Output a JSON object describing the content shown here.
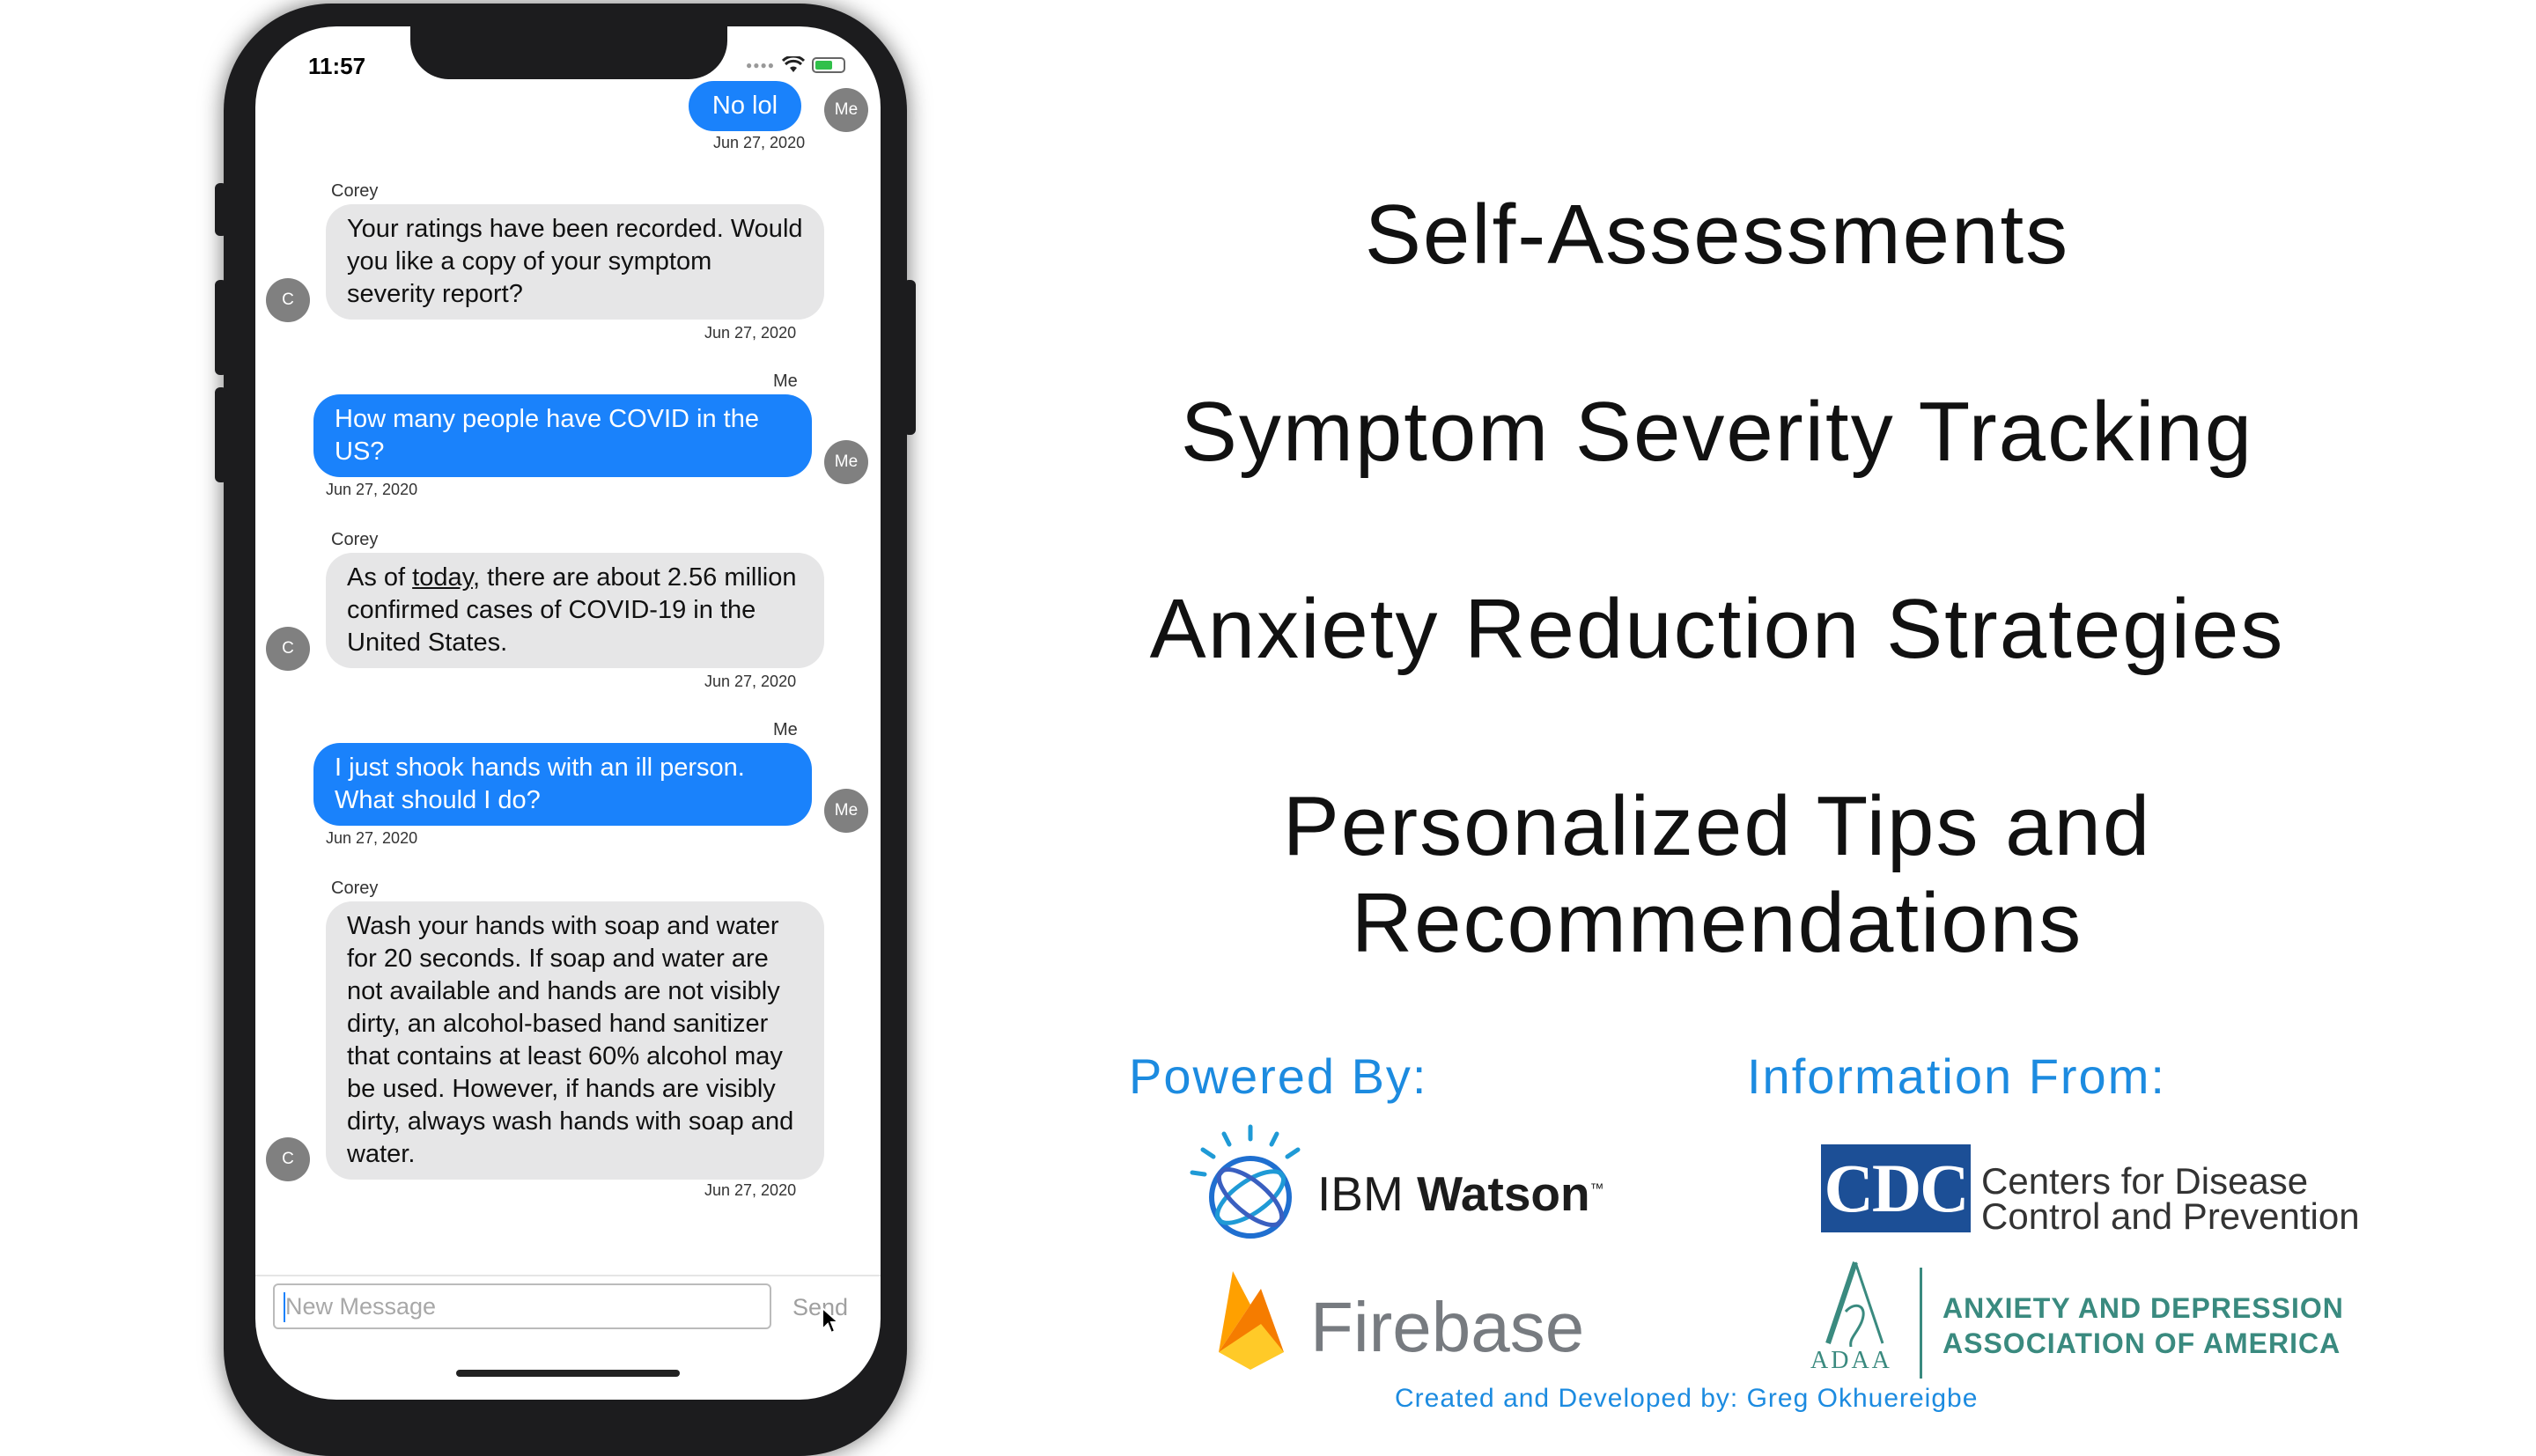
{
  "phone": {
    "status_time": "11:57",
    "messages": [
      {
        "from": "me",
        "text": "No lol",
        "date": "Jun 27, 2020",
        "avatar": "Me"
      },
      {
        "from": "them",
        "sender": "Corey",
        "text": "Your ratings have been recorded. Would you like a copy of your symptom severity report?",
        "date": "Jun 27, 2020",
        "avatar": "C"
      },
      {
        "from": "me",
        "sender": "Me",
        "text": "How many people have COVID in the US?",
        "date": "Jun 27, 2020",
        "avatar": "Me"
      },
      {
        "from": "them",
        "sender": "Corey",
        "text_before": "As of ",
        "link": "today",
        "text_after": ", there are about 2.56 million confirmed cases of COVID-19 in the United States.",
        "date": "Jun 27, 2020",
        "avatar": "C"
      },
      {
        "from": "me",
        "sender": "Me",
        "text": "I just shook hands with an ill person. What should I do?",
        "date": "Jun 27, 2020",
        "avatar": "Me"
      },
      {
        "from": "them",
        "sender": "Corey",
        "text": "Wash your hands with soap and water for 20 seconds. If soap and water are not available and hands are not visibly dirty, an alcohol-based hand sanitizer that contains at least 60% alcohol may be used. However, if hands are visibly dirty, always wash hands with soap and water.",
        "date": "Jun 27, 2020",
        "avatar": "C"
      }
    ],
    "composer": {
      "placeholder": "New Message",
      "send_label": "Send"
    }
  },
  "features": [
    "Self-Assessments",
    "Symptom Severity Tracking",
    "Anxiety Reduction Strategies",
    "Personalized Tips and Recommendations"
  ],
  "powered_by": {
    "heading": "Powered By:",
    "ibm": {
      "light": "IBM ",
      "bold": "Watson",
      "tm": "™"
    },
    "firebase": "Firebase"
  },
  "information_from": {
    "heading": "Information From:",
    "cdc": {
      "mark": "CDC",
      "line1": "Centers for Disease",
      "line2": "Control and Prevention"
    },
    "adaa": {
      "letters": "ADAA",
      "line1": "ANXIETY AND DEPRESSION",
      "line2": "ASSOCIATION OF AMERICA"
    }
  },
  "credit": "Created and Developed by: Greg Okhuereigbe",
  "colors": {
    "accent_blue": "#1c8be0",
    "imessage_blue": "#1a82fb",
    "bubble_gray": "#e6e6e7",
    "cdc_blue": "#1c4f96",
    "adaa_teal": "#3a8a7f"
  }
}
